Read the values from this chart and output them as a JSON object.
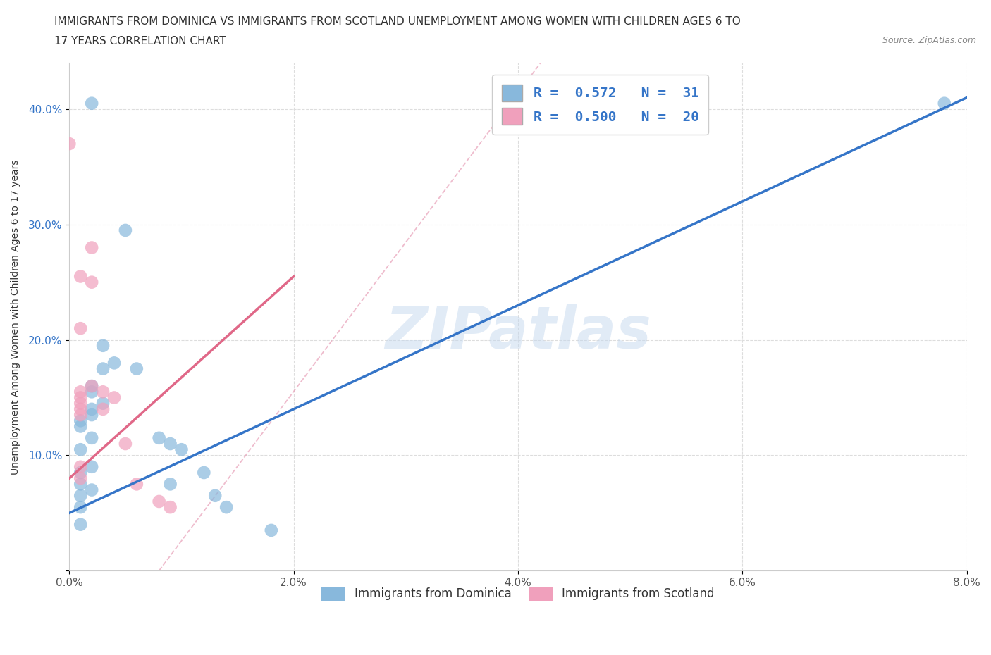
{
  "title_line1": "IMMIGRANTS FROM DOMINICA VS IMMIGRANTS FROM SCOTLAND UNEMPLOYMENT AMONG WOMEN WITH CHILDREN AGES 6 TO",
  "title_line2": "17 YEARS CORRELATION CHART",
  "source": "Source: ZipAtlas.com",
  "ylabel": "Unemployment Among Women with Children Ages 6 to 17 years",
  "xlim": [
    0.0,
    0.08
  ],
  "ylim": [
    0.0,
    0.44
  ],
  "xticks": [
    0.0,
    0.02,
    0.04,
    0.06,
    0.08
  ],
  "yticks": [
    0.0,
    0.1,
    0.2,
    0.3,
    0.4
  ],
  "watermark": "ZIPatlas",
  "legend_r_entries": [
    {
      "label": "R =  0.572   N =  31",
      "color": "#a8c8e8"
    },
    {
      "label": "R =  0.500   N =  20",
      "color": "#f4b0c8"
    }
  ],
  "legend_labels": [
    "Immigrants from Dominica",
    "Immigrants from Scotland"
  ],
  "dominica_color": "#88b8dc",
  "scotland_color": "#f0a0bc",
  "dominica_line_color": "#3575c8",
  "scotland_line_color": "#e06888",
  "ref_line_color": "#e8a0b8",
  "dominica_scatter": [
    [
      0.002,
      0.405
    ],
    [
      0.001,
      0.13
    ],
    [
      0.001,
      0.125
    ],
    [
      0.001,
      0.105
    ],
    [
      0.001,
      0.085
    ],
    [
      0.001,
      0.075
    ],
    [
      0.001,
      0.065
    ],
    [
      0.001,
      0.055
    ],
    [
      0.001,
      0.04
    ],
    [
      0.002,
      0.16
    ],
    [
      0.002,
      0.155
    ],
    [
      0.002,
      0.14
    ],
    [
      0.002,
      0.135
    ],
    [
      0.002,
      0.115
    ],
    [
      0.002,
      0.09
    ],
    [
      0.002,
      0.07
    ],
    [
      0.003,
      0.195
    ],
    [
      0.003,
      0.175
    ],
    [
      0.003,
      0.145
    ],
    [
      0.004,
      0.18
    ],
    [
      0.005,
      0.295
    ],
    [
      0.006,
      0.175
    ],
    [
      0.008,
      0.115
    ],
    [
      0.009,
      0.11
    ],
    [
      0.009,
      0.075
    ],
    [
      0.01,
      0.105
    ],
    [
      0.012,
      0.085
    ],
    [
      0.013,
      0.065
    ],
    [
      0.014,
      0.055
    ],
    [
      0.018,
      0.035
    ],
    [
      0.078,
      0.405
    ]
  ],
  "scotland_scatter": [
    [
      0.0,
      0.37
    ],
    [
      0.001,
      0.255
    ],
    [
      0.001,
      0.21
    ],
    [
      0.001,
      0.155
    ],
    [
      0.001,
      0.15
    ],
    [
      0.001,
      0.145
    ],
    [
      0.001,
      0.14
    ],
    [
      0.001,
      0.135
    ],
    [
      0.001,
      0.09
    ],
    [
      0.001,
      0.08
    ],
    [
      0.002,
      0.28
    ],
    [
      0.002,
      0.25
    ],
    [
      0.002,
      0.16
    ],
    [
      0.003,
      0.155
    ],
    [
      0.003,
      0.14
    ],
    [
      0.004,
      0.15
    ],
    [
      0.005,
      0.11
    ],
    [
      0.006,
      0.075
    ],
    [
      0.008,
      0.06
    ],
    [
      0.009,
      0.055
    ]
  ],
  "background_color": "#ffffff",
  "grid_color": "#dddddd"
}
